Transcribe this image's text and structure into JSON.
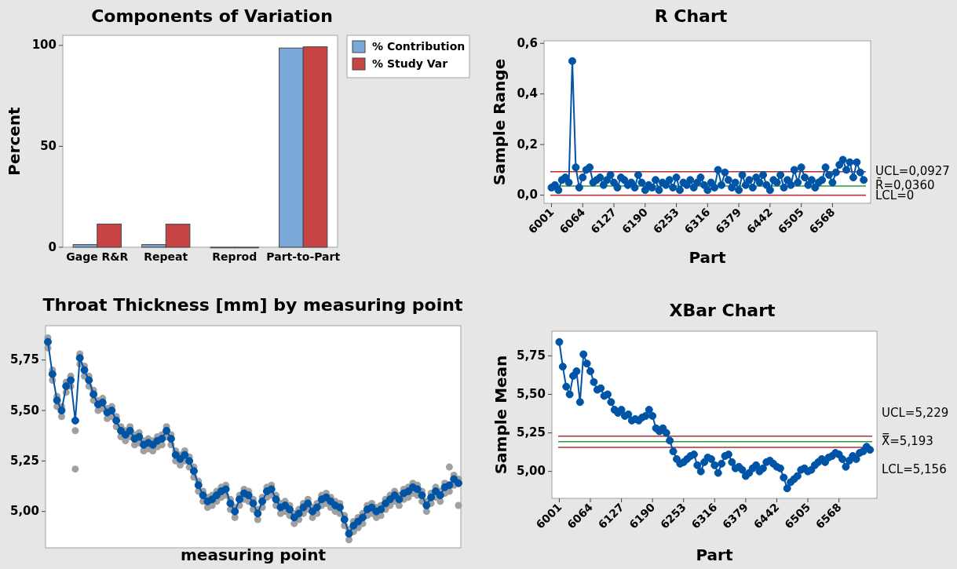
{
  "chart_data": [
    {
      "type": "bar",
      "title": "Components of Variation",
      "ylabel": "Percent",
      "categories": [
        "Gage R&R",
        "Repeat",
        "Reprod",
        "Part-to-Part"
      ],
      "legend": "top right",
      "ylim": [
        0,
        105
      ],
      "yticks": [
        0,
        50,
        100
      ],
      "series": [
        {
          "name": "% Contribution",
          "color": "#7ba7d9",
          "values": [
            1.3,
            1.3,
            0,
            98.7
          ]
        },
        {
          "name": "% Study Var",
          "color": "#c84343",
          "values": [
            11.5,
            11.4,
            0,
            99.3
          ]
        }
      ]
    },
    {
      "type": "line",
      "title": "R Chart",
      "xlabel": "Part",
      "ylabel": "Sample Range",
      "marker": "circle",
      "xlim": [
        5986,
        6645
      ],
      "xticks": [
        6001,
        6064,
        6127,
        6190,
        6253,
        6316,
        6379,
        6442,
        6505,
        6568
      ],
      "ylim": [
        -0.032,
        0.61
      ],
      "yticks": [
        {
          "value": 0,
          "label": "0,0"
        },
        {
          "value": 0.2,
          "label": "0,2"
        },
        {
          "value": 0.4,
          "label": "0,4"
        },
        {
          "value": 0.6,
          "label": "0,6"
        }
      ],
      "x": [
        6001,
        6008,
        6015,
        6022,
        6029,
        6036,
        6043,
        6050,
        6057,
        6064,
        6071,
        6078,
        6085,
        6092,
        6099,
        6106,
        6113,
        6120,
        6127,
        6134,
        6141,
        6148,
        6155,
        6162,
        6169,
        6176,
        6183,
        6190,
        6197,
        6204,
        6211,
        6218,
        6225,
        6232,
        6239,
        6246,
        6253,
        6260,
        6267,
        6274,
        6281,
        6288,
        6295,
        6302,
        6309,
        6316,
        6323,
        6330,
        6337,
        6344,
        6351,
        6358,
        6365,
        6372,
        6379,
        6386,
        6393,
        6400,
        6407,
        6414,
        6421,
        6428,
        6435,
        6442,
        6449,
        6456,
        6463,
        6470,
        6477,
        6484,
        6491,
        6498,
        6505,
        6512,
        6519,
        6526,
        6533,
        6540,
        6547,
        6554,
        6561,
        6568,
        6575,
        6582,
        6589,
        6596,
        6603,
        6610,
        6617,
        6624,
        6631
      ],
      "series": [
        {
          "color": "#0054a6",
          "values": [
            0.03,
            0.04,
            0.02,
            0.06,
            0.07,
            0.05,
            0.53,
            0.11,
            0.03,
            0.07,
            0.1,
            0.11,
            0.05,
            0.06,
            0.07,
            0.04,
            0.06,
            0.08,
            0.05,
            0.03,
            0.07,
            0.06,
            0.04,
            0.05,
            0.03,
            0.08,
            0.05,
            0.02,
            0.04,
            0.03,
            0.06,
            0.02,
            0.05,
            0.04,
            0.06,
            0.03,
            0.07,
            0.02,
            0.05,
            0.04,
            0.06,
            0.03,
            0.05,
            0.07,
            0.04,
            0.02,
            0.05,
            0.03,
            0.1,
            0.04,
            0.09,
            0.06,
            0.03,
            0.05,
            0.02,
            0.08,
            0.04,
            0.06,
            0.03,
            0.07,
            0.05,
            0.08,
            0.04,
            0.02,
            0.06,
            0.05,
            0.08,
            0.03,
            0.06,
            0.04,
            0.1,
            0.05,
            0.11,
            0.07,
            0.04,
            0.06,
            0.03,
            0.05,
            0.06,
            0.11,
            0.08,
            0.05,
            0.09,
            0.12,
            0.14,
            0.1,
            0.13,
            0.07,
            0.13,
            0.09,
            0.06
          ]
        }
      ],
      "ref_lines": [
        {
          "axis": "y",
          "value": 0.0927,
          "label": "UCL=0,0927",
          "color": "#b03030"
        },
        {
          "axis": "y",
          "value": 0.036,
          "label": "R̄=0,0360",
          "color": "#2e9a3e"
        },
        {
          "axis": "y",
          "value": 0,
          "label": "LCL=0",
          "color": "#b03030"
        }
      ]
    },
    {
      "type": "scatter",
      "title": "Throat Thickness [mm] by measuring point",
      "xlabel": "measuring point",
      "marker": "circle",
      "ylim": [
        4.82,
        5.92
      ],
      "yticks": [
        {
          "value": 5,
          "label": "5,00"
        },
        {
          "value": 5.25,
          "label": "5,25"
        },
        {
          "value": 5.5,
          "label": "5,50"
        },
        {
          "value": 5.75,
          "label": "5,75"
        }
      ],
      "categories": [
        null,
        null,
        null,
        null,
        null,
        null,
        null,
        null,
        null,
        null,
        null,
        null,
        null,
        null,
        null,
        null,
        null,
        null,
        null,
        null,
        null,
        null,
        null,
        null,
        null,
        null,
        null,
        null,
        null,
        null,
        null,
        null,
        null,
        null,
        null,
        null,
        null,
        null,
        null,
        null,
        null,
        null,
        null,
        null,
        null,
        null,
        null,
        null,
        null,
        null,
        null,
        null,
        null,
        null,
        null,
        null,
        null,
        null,
        null,
        null,
        null,
        null,
        null,
        null,
        null,
        null,
        null,
        null,
        null,
        null,
        null,
        null,
        null,
        null,
        null,
        null,
        null,
        null,
        null,
        null,
        null,
        null,
        null,
        null,
        null,
        null,
        null,
        null,
        null,
        null,
        null
      ],
      "series": [
        {
          "type": "scatter",
          "color": "#a0a0a0",
          "values": [
            5.81,
            5.65,
            5.52,
            5.47,
            5.59,
            5.62,
            5.21,
            5.73,
            5.67,
            5.62,
            5.55,
            5.5,
            5.51,
            5.46,
            5.47,
            5.42,
            5.37,
            5.35,
            5.37,
            5.33,
            5.34,
            5.3,
            5.31,
            5.3,
            5.32,
            5.33,
            5.37,
            5.33,
            5.25,
            5.23,
            5.25,
            5.22,
            5.17,
            5.1,
            5.05,
            5.02,
            5.03,
            5.05,
            5.07,
            5.08,
            5.01,
            4.97,
            5.03,
            5.06,
            5.05,
            5.01,
            4.96,
            5.02,
            5.07,
            5.08,
            5.03,
            4.99,
            5.0,
            4.98,
            4.94,
            4.96,
            4.99,
            5.01,
            4.97,
            4.99,
            5.03,
            5.04,
            5.02,
            5.0,
            4.99,
            4.93,
            4.86,
            4.9,
            4.92,
            4.94,
            4.98,
            4.99,
            4.97,
            4.98,
            5.01,
            5.03,
            5.05,
            5.03,
            5.06,
            5.07,
            5.09,
            5.08,
            5.05,
            5.0,
            5.04,
            5.07,
            5.05,
            5.09,
            5.1,
            5.13,
            5.03
          ]
        },
        {
          "type": "scatter",
          "color": "#a0a0a0",
          "values": [
            5.86,
            5.7,
            5.57,
            5.52,
            5.64,
            5.67,
            5.4,
            5.78,
            5.72,
            5.67,
            5.6,
            5.55,
            5.56,
            5.51,
            5.52,
            5.47,
            5.42,
            5.4,
            5.42,
            5.38,
            5.39,
            5.35,
            5.36,
            5.35,
            5.37,
            5.38,
            5.42,
            5.38,
            5.3,
            5.28,
            5.3,
            5.27,
            5.22,
            5.15,
            5.1,
            5.07,
            5.08,
            5.1,
            5.12,
            5.13,
            5.06,
            5.02,
            5.08,
            5.11,
            5.1,
            5.06,
            5.01,
            5.07,
            5.12,
            5.13,
            5.08,
            5.04,
            5.05,
            5.03,
            4.99,
            5.01,
            5.04,
            5.06,
            5.02,
            5.04,
            5.08,
            5.09,
            5.07,
            5.05,
            5.04,
            4.98,
            4.91,
            4.95,
            4.97,
            4.99,
            5.03,
            5.04,
            5.02,
            5.03,
            5.06,
            5.08,
            5.1,
            5.08,
            5.11,
            5.12,
            5.14,
            5.13,
            5.1,
            5.05,
            5.09,
            5.12,
            5.1,
            5.14,
            5.22,
            5.18,
            5.16
          ]
        },
        {
          "type": "line",
          "color": "#0054a6",
          "values": [
            5.84,
            5.68,
            5.55,
            5.5,
            5.62,
            5.65,
            5.45,
            5.76,
            5.7,
            5.65,
            5.58,
            5.53,
            5.54,
            5.49,
            5.5,
            5.45,
            5.4,
            5.38,
            5.4,
            5.36,
            5.37,
            5.33,
            5.34,
            5.33,
            5.35,
            5.36,
            5.4,
            5.36,
            5.28,
            5.26,
            5.28,
            5.25,
            5.2,
            5.13,
            5.08,
            5.05,
            5.06,
            5.08,
            5.1,
            5.11,
            5.04,
            5.0,
            5.06,
            5.09,
            5.08,
            5.04,
            4.99,
            5.05,
            5.1,
            5.11,
            5.06,
            5.02,
            5.03,
            5.01,
            4.97,
            4.99,
            5.02,
            5.04,
            5.0,
            5.02,
            5.06,
            5.07,
            5.05,
            5.03,
            5.02,
            4.96,
            4.89,
            4.93,
            4.95,
            4.97,
            5.01,
            5.02,
            5.0,
            5.01,
            5.04,
            5.06,
            5.08,
            5.06,
            5.09,
            5.1,
            5.12,
            5.11,
            5.08,
            5.03,
            5.07,
            5.1,
            5.08,
            5.12,
            5.13,
            5.16,
            5.14
          ]
        }
      ]
    },
    {
      "type": "line",
      "title": "XBar Chart",
      "xlabel": "Part",
      "ylabel": "Sample Mean",
      "marker": "circle",
      "xlim": [
        5986,
        6645
      ],
      "xticks": [
        6001,
        6064,
        6127,
        6190,
        6253,
        6316,
        6379,
        6442,
        6505,
        6568
      ],
      "ylim": [
        4.825,
        5.91
      ],
      "yticks": [
        {
          "value": 5,
          "label": "5,00"
        },
        {
          "value": 5.25,
          "label": "5,25"
        },
        {
          "value": 5.5,
          "label": "5,50"
        },
        {
          "value": 5.75,
          "label": "5,75"
        }
      ],
      "x": [
        6001,
        6008,
        6015,
        6022,
        6029,
        6036,
        6043,
        6050,
        6057,
        6064,
        6071,
        6078,
        6085,
        6092,
        6099,
        6106,
        6113,
        6120,
        6127,
        6134,
        6141,
        6148,
        6155,
        6162,
        6169,
        6176,
        6183,
        6190,
        6197,
        6204,
        6211,
        6218,
        6225,
        6232,
        6239,
        6246,
        6253,
        6260,
        6267,
        6274,
        6281,
        6288,
        6295,
        6302,
        6309,
        6316,
        6323,
        6330,
        6337,
        6344,
        6351,
        6358,
        6365,
        6372,
        6379,
        6386,
        6393,
        6400,
        6407,
        6414,
        6421,
        6428,
        6435,
        6442,
        6449,
        6456,
        6463,
        6470,
        6477,
        6484,
        6491,
        6498,
        6505,
        6512,
        6519,
        6526,
        6533,
        6540,
        6547,
        6554,
        6561,
        6568,
        6575,
        6582,
        6589,
        6596,
        6603,
        6610,
        6617,
        6624,
        6631
      ],
      "series": [
        {
          "color": "#0054a6",
          "values": [
            5.84,
            5.68,
            5.55,
            5.5,
            5.62,
            5.65,
            5.45,
            5.76,
            5.7,
            5.65,
            5.58,
            5.53,
            5.54,
            5.49,
            5.5,
            5.45,
            5.4,
            5.38,
            5.4,
            5.36,
            5.37,
            5.33,
            5.34,
            5.33,
            5.35,
            5.36,
            5.4,
            5.36,
            5.28,
            5.26,
            5.28,
            5.25,
            5.2,
            5.13,
            5.08,
            5.05,
            5.06,
            5.08,
            5.1,
            5.11,
            5.04,
            5.0,
            5.06,
            5.09,
            5.08,
            5.04,
            4.99,
            5.05,
            5.1,
            5.11,
            5.06,
            5.02,
            5.03,
            5.01,
            4.97,
            4.99,
            5.02,
            5.04,
            5.0,
            5.02,
            5.06,
            5.07,
            5.05,
            5.03,
            5.02,
            4.96,
            4.89,
            4.93,
            4.95,
            4.97,
            5.01,
            5.02,
            5.0,
            5.01,
            5.04,
            5.06,
            5.08,
            5.06,
            5.09,
            5.1,
            5.12,
            5.11,
            5.08,
            5.03,
            5.07,
            5.1,
            5.08,
            5.12,
            5.13,
            5.16,
            5.14
          ]
        }
      ],
      "ref_lines": [
        {
          "axis": "y",
          "value": 5.229,
          "label": "UCL=5,229",
          "color": "#b03030"
        },
        {
          "axis": "y",
          "value": 5.193,
          "label": "X̿=5,193",
          "color": "#2e9a3e"
        },
        {
          "axis": "y",
          "value": 5.156,
          "label": "LCL=5,156",
          "color": "#b03030"
        }
      ]
    }
  ]
}
